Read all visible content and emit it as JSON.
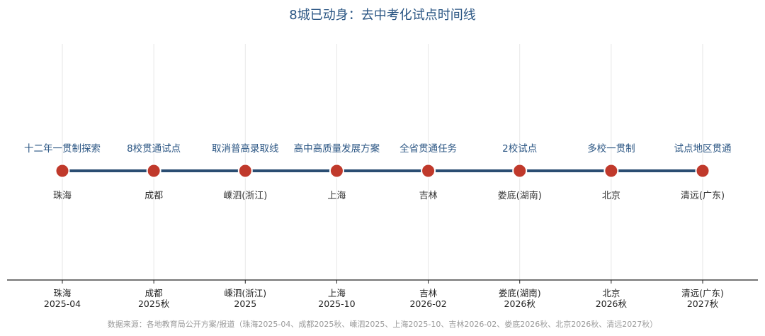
{
  "chart_data": {
    "type": "timeline",
    "title": "8城已动身：去中考化试点时间线",
    "events": [
      {
        "city": "珠海",
        "date": "2025-04",
        "event": "十二年一贯制探索"
      },
      {
        "city": "成都",
        "date": "2025秋",
        "event": "8校贯通试点"
      },
      {
        "city": "嵊泗(浙江)",
        "date": "2025",
        "event": "取消普高录取线"
      },
      {
        "city": "上海",
        "date": "2025-10",
        "event": "高中高质量发展方案"
      },
      {
        "city": "吉林",
        "date": "2026-02",
        "event": "全省贯通任务"
      },
      {
        "city": "娄底(湖南)",
        "date": "2026秋",
        "event": "2校试点"
      },
      {
        "city": "北京",
        "date": "2026秋",
        "event": "多校一贯制"
      },
      {
        "city": "清远(广东)",
        "date": "2027秋",
        "event": "试点地区贯通"
      }
    ],
    "grid": true,
    "colors": {
      "line": "#2a4d72",
      "marker": "#c0392b",
      "title": "#2a5583"
    }
  },
  "source_note": "数据来源：各地教育局公开方案/报道（珠海2025-04、成都2025秋、嵊泗2025、上海2025-10、吉林2026-02、娄底2026秋、北京2026秋、清远2027秋）"
}
